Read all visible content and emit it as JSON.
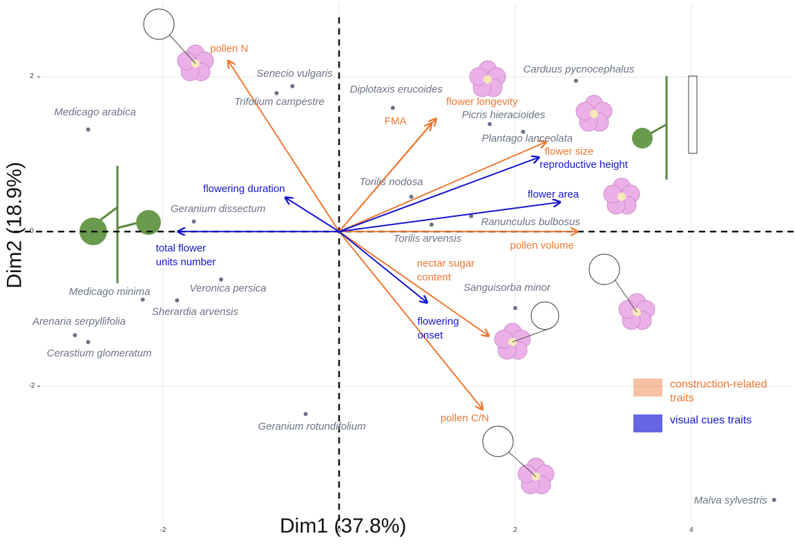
{
  "chart_data": {
    "type": "biplot",
    "x_label": "Dim1 (37.8%)",
    "y_label": "Dim2 (18.9%)",
    "xlim": [
      -3.4,
      5.15
    ],
    "ylim": [
      -3.75,
      2.95
    ],
    "xticks": [
      -2,
      0,
      2,
      4
    ],
    "yticks": [
      -2,
      0,
      2
    ],
    "grid": true,
    "points": {
      "color": "#6b7385",
      "labels": [
        "Medicago arabica",
        "Senecio vulgaris",
        "Trifolium campestre",
        "Diplotaxis erucoides",
        "Carduus pycnocephalus",
        "Picris hieracioides",
        "Plantago lanceolata",
        "Torilis nodosa",
        "Geranium dissectum",
        "Ranunculus bulbosus",
        "Torilis arvensis",
        "Veronica persica",
        "Medicago minima",
        "Sherardia arvensis",
        "Sanguisorba minor",
        "Arenaria serpyllifolia",
        "Cerastium glomeratum",
        "Geranium rotundifolium",
        "Malva sylvestris"
      ],
      "x": [
        -2.85,
        -0.53,
        -0.71,
        0.61,
        2.69,
        1.71,
        2.09,
        0.82,
        -1.65,
        1.5,
        1.05,
        -1.34,
        -2.23,
        -1.84,
        2.0,
        -3.0,
        -2.85,
        -0.38,
        4.94
      ],
      "y": [
        1.32,
        1.88,
        1.79,
        1.6,
        1.95,
        1.39,
        1.29,
        0.45,
        0.13,
        0.2,
        0.09,
        -0.62,
        -0.88,
        -0.89,
        -0.99,
        -1.34,
        -1.43,
        -2.36,
        -3.47
      ]
    },
    "series": [
      {
        "name": "construction-related\ntraits",
        "color": "#ee7733",
        "labels": [
          "pollen N",
          "FMA",
          "flower longevity",
          "flower size",
          "pollen volume",
          "nectar sugar\ncontent",
          "pollen C/N"
        ],
        "x": [
          -1.26,
          1.05,
          1.1,
          2.35,
          2.71,
          1.7,
          1.63
        ],
        "y": [
          2.21,
          1.4,
          1.46,
          1.16,
          0,
          -1.35,
          -2.3
        ]
      },
      {
        "name": "visual cues traits",
        "color": "#1414d2",
        "labels": [
          "flowering duration",
          "total flower\nunits number",
          "reproductive height",
          "flower area",
          "flowering\nonset"
        ],
        "x": [
          -0.61,
          -1.83,
          2.27,
          2.51,
          1.0
        ],
        "y": [
          0.44,
          0,
          0.96,
          0.38,
          -0.92
        ]
      }
    ]
  }
}
